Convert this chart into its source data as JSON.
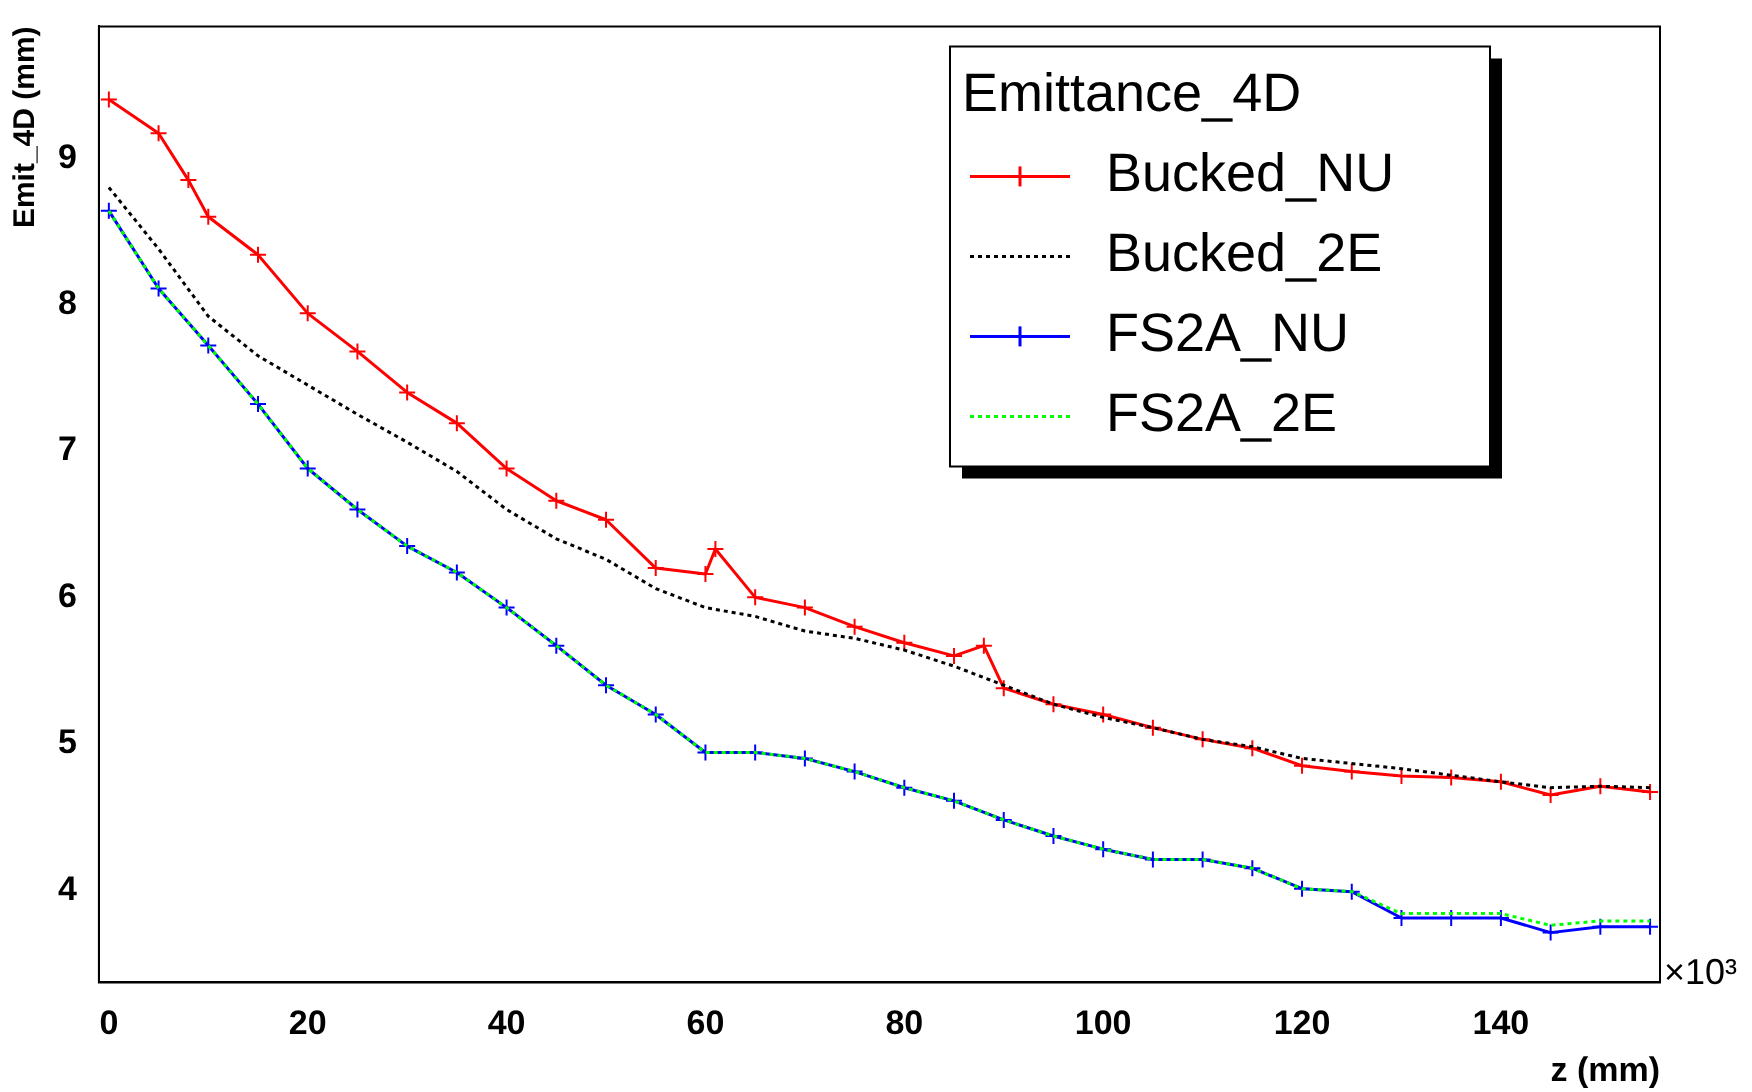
{
  "chart_data": {
    "type": "line",
    "xlabel": "z (mm)",
    "ylabel": "Emit_4D (mm)",
    "legend_title": "Emittance_4D",
    "legend": "top right",
    "grid": false,
    "xlim": [
      -1,
      156
    ],
    "xticks": [
      0,
      20,
      40,
      60,
      80,
      100,
      120,
      140
    ],
    "ylim": [
      3.37,
      9.9
    ],
    "yticks": [
      4,
      5,
      6,
      7,
      8,
      9
    ],
    "annotations": [
      "×10³"
    ],
    "series": [
      {
        "name": "Bucked_NU",
        "color": "#ff0000",
        "marker": "cross",
        "line_style": "solid",
        "x": [
          0,
          5,
          8,
          10,
          15,
          20,
          25,
          30,
          35,
          40,
          45,
          50,
          55,
          60,
          61,
          65,
          70,
          75,
          80,
          85,
          88,
          90,
          95,
          100,
          105,
          110,
          115,
          120,
          125,
          130,
          135,
          140,
          145,
          150,
          155
        ],
        "values": [
          9.4,
          9.17,
          8.85,
          8.6,
          8.34,
          7.94,
          7.68,
          7.4,
          7.19,
          6.88,
          6.66,
          6.53,
          6.2,
          6.16,
          6.33,
          6.0,
          5.93,
          5.8,
          5.69,
          5.6,
          5.67,
          5.38,
          5.27,
          5.2,
          5.11,
          5.03,
          4.97,
          4.85,
          4.81,
          4.78,
          4.77,
          4.74,
          4.65,
          4.71,
          4.67
        ]
      },
      {
        "name": "Bucked_2E",
        "color": "#000000",
        "marker": "none",
        "line_style": "dotted",
        "x": [
          0,
          5,
          10,
          15,
          20,
          25,
          30,
          35,
          40,
          45,
          50,
          55,
          60,
          65,
          70,
          75,
          80,
          85,
          90,
          95,
          100,
          105,
          110,
          115,
          120,
          130,
          140,
          145,
          150,
          155
        ],
        "values": [
          8.8,
          8.38,
          7.92,
          7.65,
          7.45,
          7.25,
          7.06,
          6.86,
          6.6,
          6.4,
          6.26,
          6.06,
          5.93,
          5.87,
          5.77,
          5.72,
          5.64,
          5.53,
          5.4,
          5.27,
          5.18,
          5.11,
          5.03,
          4.98,
          4.9,
          4.83,
          4.74,
          4.7,
          4.71,
          4.7
        ]
      },
      {
        "name": "FS2A_NU",
        "color": "#0000ff",
        "marker": "cross",
        "line_style": "solid",
        "x": [
          0,
          5,
          10,
          15,
          20,
          25,
          30,
          35,
          40,
          45,
          50,
          55,
          60,
          65,
          70,
          75,
          80,
          85,
          90,
          95,
          100,
          105,
          110,
          115,
          120,
          125,
          130,
          135,
          140,
          145,
          150,
          155
        ],
        "values": [
          8.64,
          8.11,
          7.72,
          7.32,
          6.88,
          6.6,
          6.35,
          6.17,
          5.93,
          5.67,
          5.4,
          5.2,
          4.94,
          4.94,
          4.9,
          4.81,
          4.7,
          4.61,
          4.48,
          4.37,
          4.28,
          4.21,
          4.21,
          4.15,
          4.01,
          3.99,
          3.81,
          3.81,
          3.81,
          3.71,
          3.75,
          3.75
        ]
      },
      {
        "name": "FS2A_2E",
        "color": "#00ff00",
        "marker": "none",
        "line_style": "dotted",
        "x": [
          0,
          5,
          10,
          15,
          20,
          25,
          30,
          35,
          40,
          45,
          50,
          55,
          60,
          65,
          70,
          75,
          80,
          85,
          90,
          95,
          100,
          105,
          110,
          115,
          120,
          125,
          130,
          135,
          140,
          145,
          150,
          155
        ],
        "values": [
          8.64,
          8.11,
          7.72,
          7.32,
          6.88,
          6.6,
          6.35,
          6.17,
          5.93,
          5.67,
          5.4,
          5.2,
          4.94,
          4.94,
          4.9,
          4.81,
          4.7,
          4.61,
          4.48,
          4.37,
          4.28,
          4.21,
          4.21,
          4.15,
          4.01,
          3.99,
          3.84,
          3.84,
          3.84,
          3.76,
          3.79,
          3.79
        ]
      }
    ]
  }
}
